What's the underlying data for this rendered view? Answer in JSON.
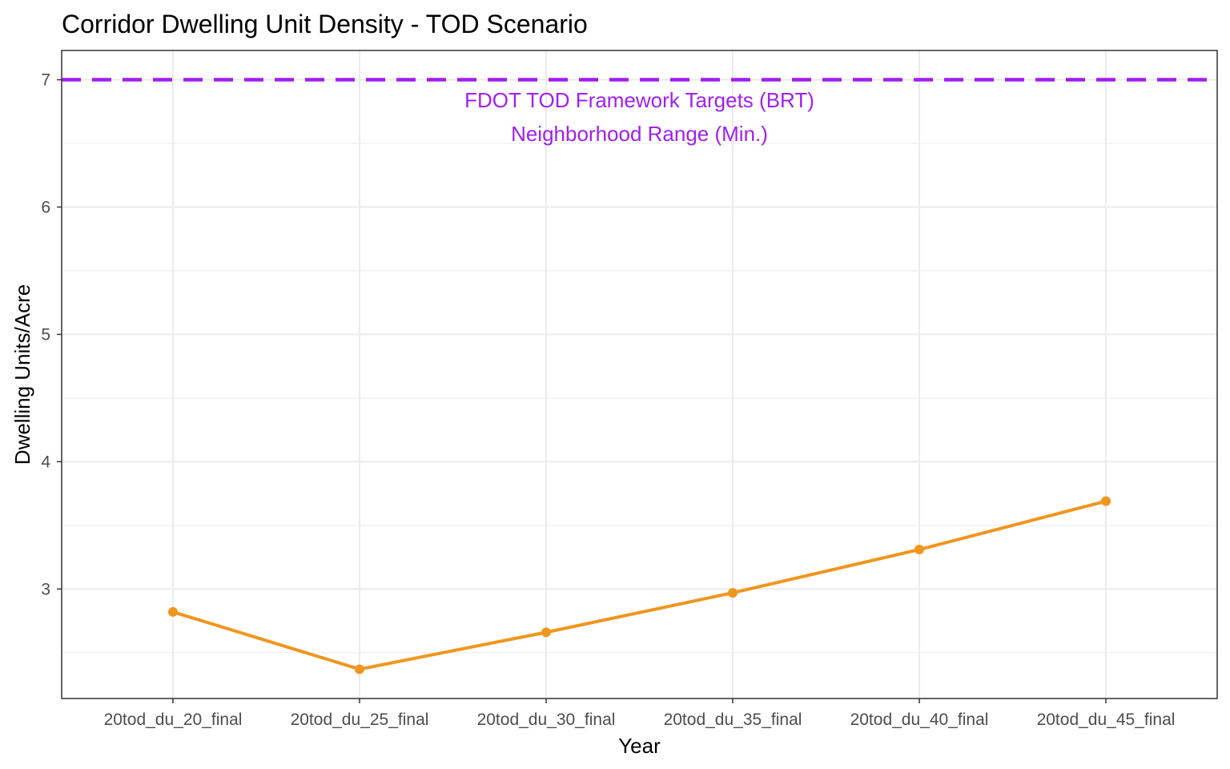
{
  "chart_data": {
    "type": "line",
    "title": "Corridor Dwelling Unit Density - TOD Scenario",
    "xlabel": "Year",
    "ylabel": "Dwelling Units/Acre",
    "categories": [
      "20tod_du_20_final",
      "20tod_du_25_final",
      "20tod_du_30_final",
      "20tod_du_35_final",
      "20tod_du_40_final",
      "20tod_du_45_final"
    ],
    "series": [
      {
        "values": [
          2.82,
          2.37,
          2.66,
          2.97,
          3.31,
          3.69
        ],
        "color": "#f0961e"
      }
    ],
    "ylim": [
      2.14,
      7.23
    ],
    "yticks": [
      3,
      4,
      5,
      6,
      7
    ],
    "ytick_labels": [
      "3",
      "4",
      "5",
      "6",
      "7"
    ],
    "grid": true,
    "reference_line": {
      "value": 7,
      "style": "dashed",
      "color": "#a020f0"
    },
    "annotations": [
      "FDOT TOD Framework Targets (BRT)",
      "Neighborhood Range (Min.)"
    ],
    "colors": {
      "panel_border": "#333333",
      "grid": "#ebebeb",
      "annotation": "#a020f0",
      "tick_label": "#4d4d4d"
    }
  }
}
